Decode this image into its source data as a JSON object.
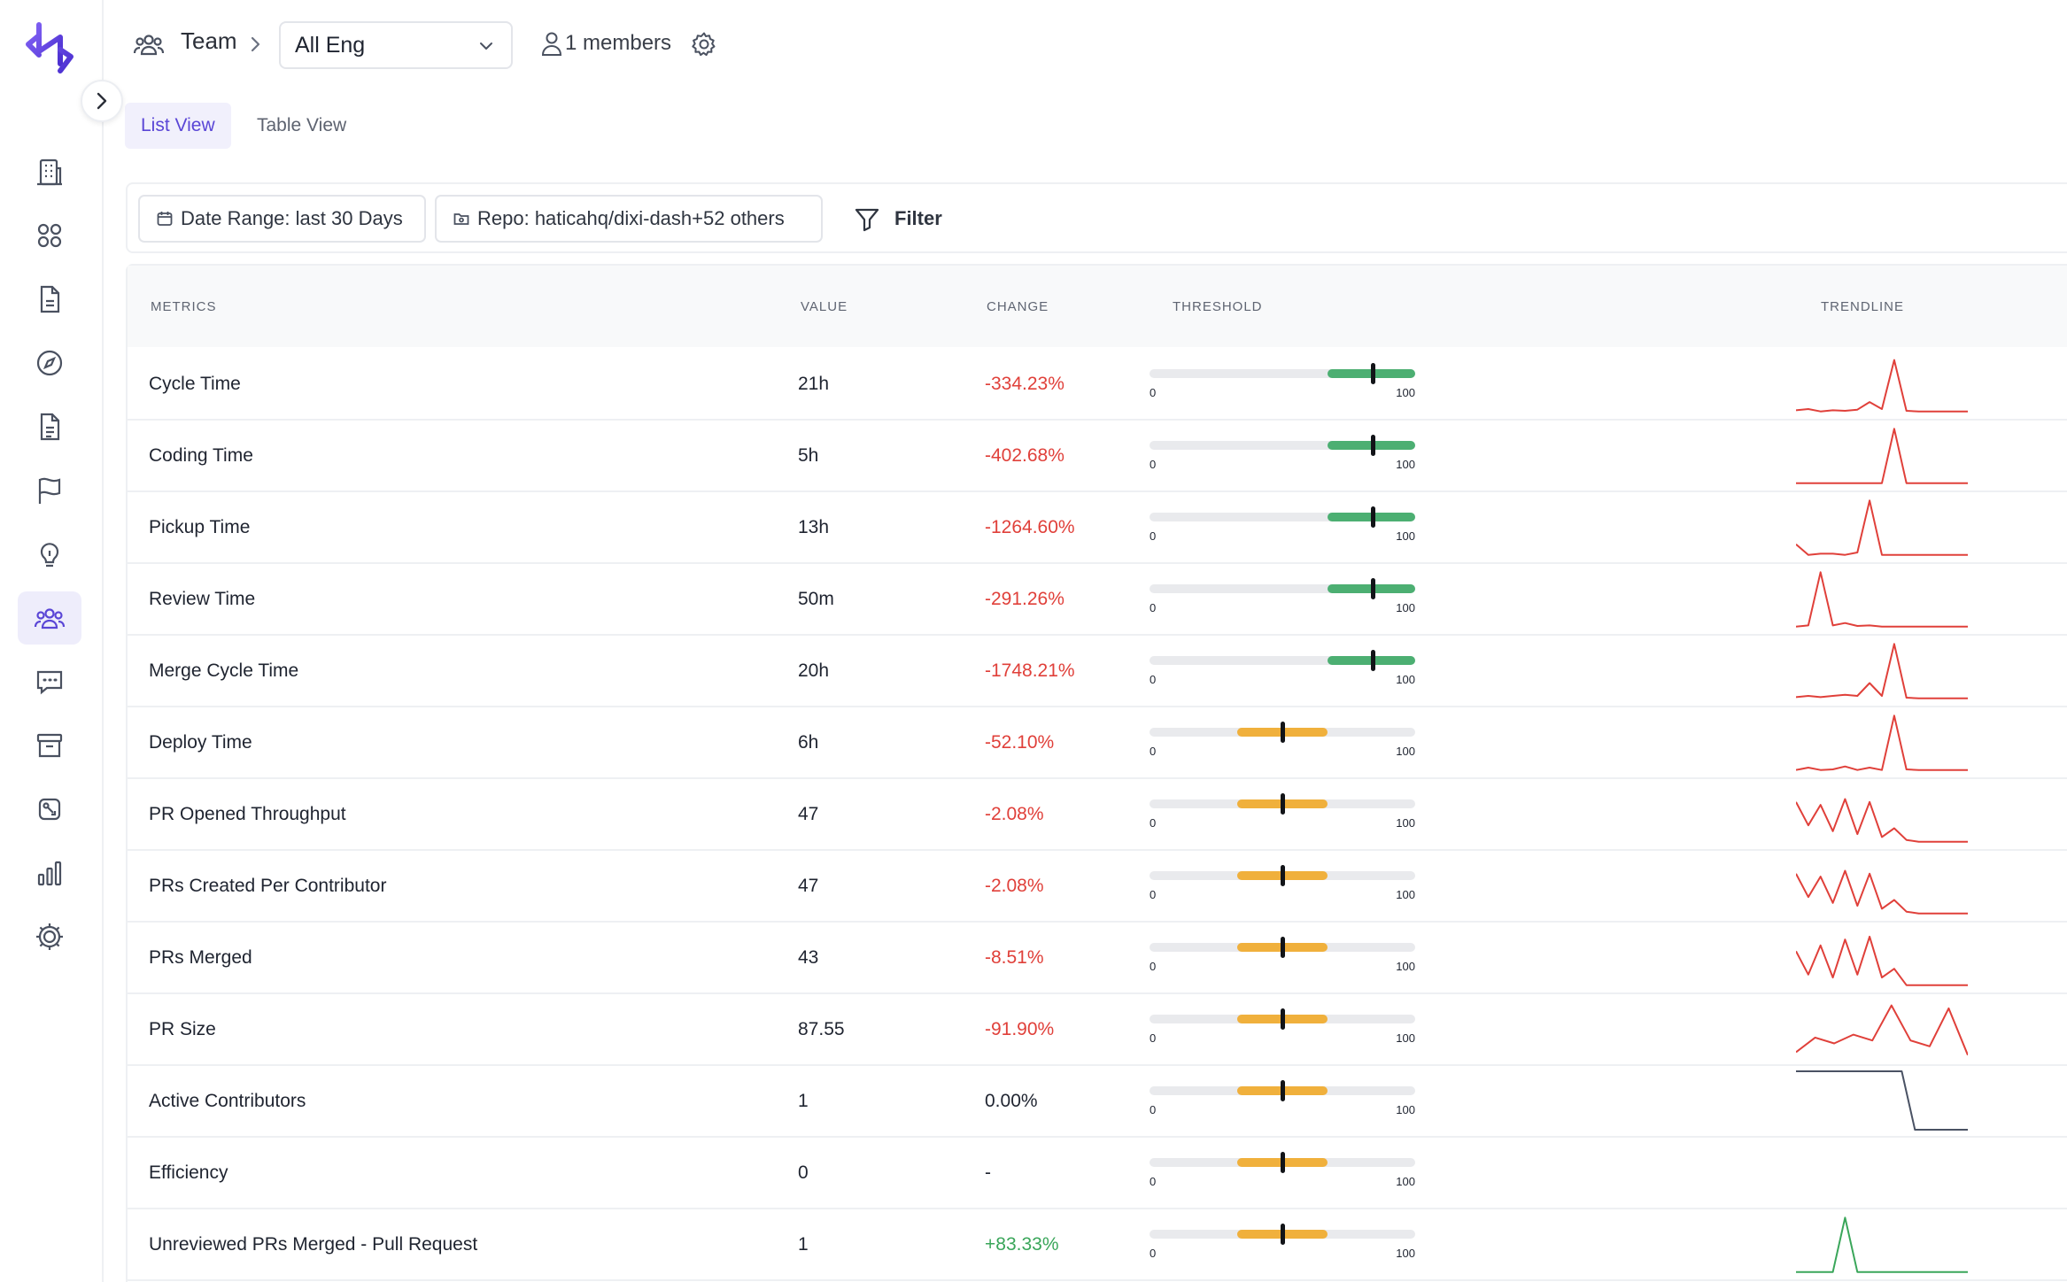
{
  "header": {
    "breadcrumb_label": "Team",
    "team_select_value": "All Eng",
    "members_text": "1 members"
  },
  "tabs": [
    {
      "label": "List View",
      "active": true
    },
    {
      "label": "Table View",
      "active": false
    }
  ],
  "filters": {
    "date_range": "Date Range: last 30 Days",
    "repo": "Repo: haticahq/dixi-dash+52 others",
    "filter_label": "Filter"
  },
  "table": {
    "columns": [
      "METRICS",
      "VALUE",
      "CHANGE",
      "THRESHOLD",
      "TRENDLINE"
    ],
    "threshold_min_label": "0",
    "threshold_max_label": "100",
    "rows": [
      {
        "metric": "Cycle Time",
        "value": "21h",
        "change": "-334.23%",
        "change_type": "negative",
        "threshold": {
          "color": "green",
          "fill_start": 0.67,
          "fill_end": 1.0,
          "marker": 0.84
        },
        "trend_color": "#e0403a",
        "trend": [
          0.04,
          0.06,
          0.02,
          0.04,
          0.03,
          0.05,
          0.18,
          0.06,
          0.9,
          0.03,
          0.02,
          0.02,
          0.02,
          0.02,
          0.02
        ]
      },
      {
        "metric": "Coding Time",
        "value": "5h",
        "change": "-402.68%",
        "change_type": "negative",
        "threshold": {
          "color": "green",
          "fill_start": 0.67,
          "fill_end": 1.0,
          "marker": 0.84
        },
        "trend_color": "#e0403a",
        "trend": [
          0.02,
          0.02,
          0.02,
          0.02,
          0.02,
          0.02,
          0.02,
          0.02,
          0.95,
          0.02,
          0.02,
          0.02,
          0.02,
          0.02,
          0.02
        ]
      },
      {
        "metric": "Pickup Time",
        "value": "13h",
        "change": "-1264.60%",
        "change_type": "negative",
        "threshold": {
          "color": "green",
          "fill_start": 0.67,
          "fill_end": 1.0,
          "marker": 0.84
        },
        "trend_color": "#e0403a",
        "trend": [
          0.2,
          0.02,
          0.04,
          0.04,
          0.02,
          0.06,
          0.95,
          0.02,
          0.02,
          0.02,
          0.02,
          0.02,
          0.02,
          0.02,
          0.02
        ]
      },
      {
        "metric": "Review Time",
        "value": "50m",
        "change": "-291.26%",
        "change_type": "negative",
        "threshold": {
          "color": "green",
          "fill_start": 0.67,
          "fill_end": 1.0,
          "marker": 0.84
        },
        "trend_color": "#e0403a",
        "trend": [
          0.02,
          0.04,
          0.95,
          0.04,
          0.08,
          0.03,
          0.04,
          0.02,
          0.02,
          0.02,
          0.02,
          0.02,
          0.02,
          0.02,
          0.02
        ]
      },
      {
        "metric": "Merge Cycle Time",
        "value": "20h",
        "change": "-1748.21%",
        "change_type": "negative",
        "threshold": {
          "color": "green",
          "fill_start": 0.67,
          "fill_end": 1.0,
          "marker": 0.84
        },
        "trend_color": "#e0403a",
        "trend": [
          0.04,
          0.06,
          0.04,
          0.06,
          0.08,
          0.06,
          0.28,
          0.06,
          0.95,
          0.03,
          0.02,
          0.02,
          0.02,
          0.02,
          0.02
        ]
      },
      {
        "metric": "Deploy Time",
        "value": "6h",
        "change": "-52.10%",
        "change_type": "negative",
        "threshold": {
          "color": "amber",
          "fill_start": 0.33,
          "fill_end": 0.67,
          "marker": 0.5
        },
        "trend_color": "#e0403a",
        "trend": [
          0.02,
          0.06,
          0.02,
          0.03,
          0.08,
          0.02,
          0.06,
          0.02,
          0.95,
          0.03,
          0.02,
          0.02,
          0.02,
          0.02,
          0.02
        ]
      },
      {
        "metric": "PR Opened Throughput",
        "value": "47",
        "change": "-2.08%",
        "change_type": "negative",
        "threshold": {
          "color": "amber",
          "fill_start": 0.33,
          "fill_end": 0.67,
          "marker": 0.5
        },
        "trend_color": "#e0403a",
        "trend": [
          0.7,
          0.3,
          0.65,
          0.2,
          0.75,
          0.15,
          0.7,
          0.1,
          0.25,
          0.05,
          0.02,
          0.02,
          0.02,
          0.02,
          0.02
        ]
      },
      {
        "metric": "PRs Created Per Contributor",
        "value": "47",
        "change": "-2.08%",
        "change_type": "negative",
        "threshold": {
          "color": "amber",
          "fill_start": 0.33,
          "fill_end": 0.67,
          "marker": 0.5
        },
        "trend_color": "#e0403a",
        "trend": [
          0.7,
          0.3,
          0.65,
          0.2,
          0.75,
          0.15,
          0.7,
          0.1,
          0.25,
          0.05,
          0.02,
          0.02,
          0.02,
          0.02,
          0.02
        ]
      },
      {
        "metric": "PRs Merged",
        "value": "43",
        "change": "-8.51%",
        "change_type": "negative",
        "threshold": {
          "color": "amber",
          "fill_start": 0.33,
          "fill_end": 0.67,
          "marker": 0.5
        },
        "trend_color": "#e0403a",
        "trend": [
          0.6,
          0.2,
          0.7,
          0.15,
          0.8,
          0.2,
          0.85,
          0.15,
          0.3,
          0.02,
          0.02,
          0.02,
          0.02,
          0.02,
          0.02
        ]
      },
      {
        "metric": "PR Size",
        "value": "87.55",
        "change": "-91.90%",
        "change_type": "negative",
        "threshold": {
          "color": "amber",
          "fill_start": 0.33,
          "fill_end": 0.67,
          "marker": 0.5
        },
        "trend_color": "#e0403a",
        "trend": [
          0.1,
          0.35,
          0.25,
          0.4,
          0.3,
          0.9,
          0.3,
          0.2,
          0.85,
          0.05
        ]
      },
      {
        "metric": "Active Contributors",
        "value": "1",
        "change": "0.00%",
        "change_type": "neutral",
        "threshold": {
          "color": "amber",
          "fill_start": 0.33,
          "fill_end": 0.67,
          "marker": 0.5
        },
        "trend_color": "#4a5264",
        "trend": [
          1,
          1,
          1,
          1,
          1,
          1,
          1,
          1,
          1,
          0,
          0,
          0,
          0,
          0
        ]
      },
      {
        "metric": "Efficiency",
        "value": "0",
        "change": "-",
        "change_type": "neutral",
        "threshold": {
          "color": "amber",
          "fill_start": 0.33,
          "fill_end": 0.67,
          "marker": 0.5
        },
        "trend_color": "#e0403a",
        "trend": []
      },
      {
        "metric": "Unreviewed PRs Merged - Pull Request",
        "value": "1",
        "change": "+83.33%",
        "change_type": "positive",
        "threshold": {
          "color": "amber",
          "fill_start": 0.33,
          "fill_end": 0.67,
          "marker": 0.5
        },
        "trend_color": "#3aa65a",
        "trend": [
          0.02,
          0.02,
          0.02,
          0.02,
          0.95,
          0.02,
          0.02,
          0.02,
          0.02,
          0.02,
          0.02,
          0.02,
          0.02,
          0.02,
          0.02
        ]
      }
    ]
  },
  "colors": {
    "accent": "#5a46d6",
    "threshold_green": "#4caf72",
    "threshold_amber": "#f0b03c",
    "negative": "#e0403a",
    "positive": "#3aa65a"
  }
}
